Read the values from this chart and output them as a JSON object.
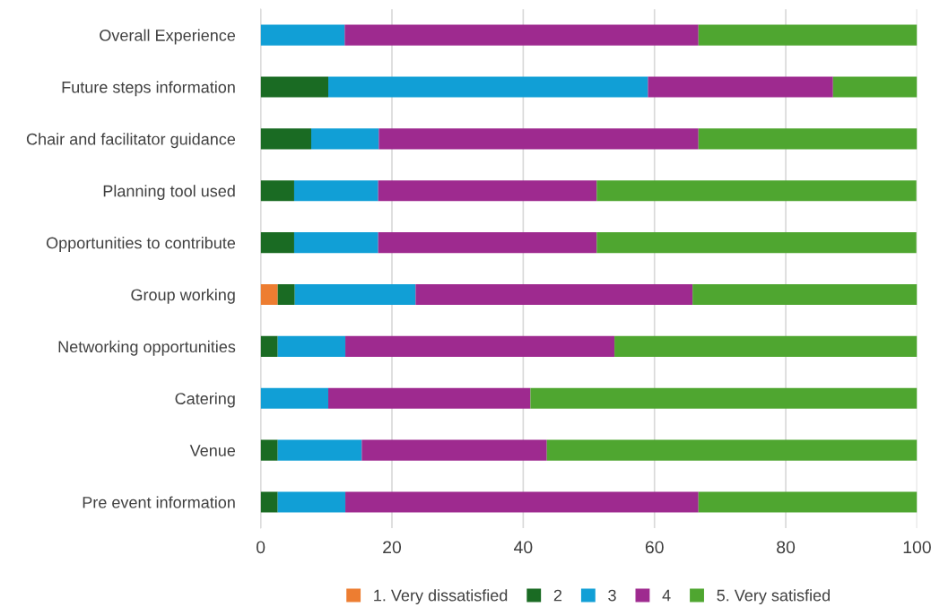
{
  "chart_data": {
    "type": "bar",
    "orientation": "horizontal",
    "stacked": true,
    "categories": [
      "Overall Experience",
      "Future steps information",
      "Chair and facilitator guidance",
      "Planning tool used",
      "Opportunities to contribute",
      "Group working",
      "Networking opportunities",
      "Catering",
      "Venue",
      "Pre event information"
    ],
    "series": [
      {
        "name": "1. Very dissatisfied",
        "color": "#ed7d31",
        "values": [
          0,
          0,
          0,
          0,
          0,
          2.6,
          0,
          0,
          0,
          0
        ]
      },
      {
        "name": "2",
        "color": "#1a6b23",
        "values": [
          0,
          10.3,
          7.7,
          5.1,
          5.1,
          2.6,
          2.6,
          0,
          2.6,
          2.6
        ]
      },
      {
        "name": "3",
        "color": "#119fd6",
        "values": [
          12.8,
          48.7,
          10.3,
          12.8,
          12.8,
          18.4,
          10.3,
          10.3,
          12.8,
          10.3
        ]
      },
      {
        "name": "4",
        "color": "#9e2a8f",
        "values": [
          53.9,
          28.2,
          48.7,
          33.3,
          33.3,
          42.2,
          41.0,
          30.8,
          28.2,
          53.8
        ]
      },
      {
        "name": "5. Very satisfied",
        "color": "#4fa630",
        "values": [
          33.3,
          12.8,
          33.3,
          48.7,
          48.7,
          34.2,
          46.1,
          58.9,
          56.4,
          33.3
        ]
      }
    ],
    "xlim": [
      0,
      100
    ],
    "xticks": [
      0,
      20,
      40,
      60,
      80,
      100
    ],
    "grid": "x",
    "legend": "bottom"
  }
}
